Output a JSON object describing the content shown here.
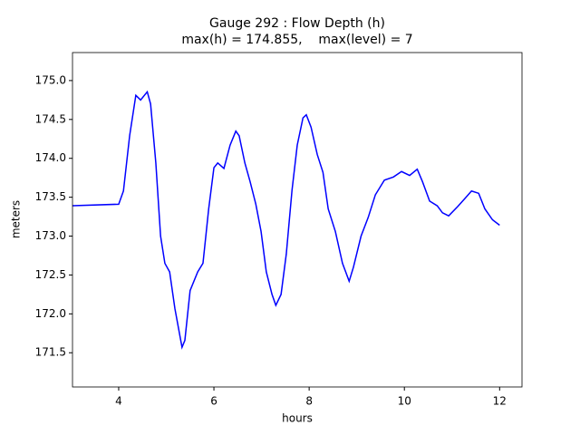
{
  "chart_data": {
    "type": "line",
    "title": "Gauge 292 : Flow Depth (h)",
    "subtitle": "max(h) = 174.855,    max(level) = 7",
    "x_label": "hours",
    "y_label": "meters",
    "x": [
      3.03,
      4.0,
      4.1,
      4.23,
      4.36,
      4.46,
      4.6,
      4.67,
      4.78,
      4.88,
      4.97,
      5.07,
      5.18,
      5.33,
      5.39,
      5.5,
      5.66,
      5.77,
      5.89,
      6.0,
      6.08,
      6.21,
      6.34,
      6.46,
      6.53,
      6.65,
      6.76,
      6.88,
      6.99,
      7.1,
      7.22,
      7.3,
      7.41,
      7.52,
      7.64,
      7.75,
      7.87,
      7.94,
      8.04,
      8.17,
      8.29,
      8.4,
      8.55,
      8.7,
      8.84,
      8.93,
      9.09,
      9.24,
      9.39,
      9.58,
      9.77,
      9.94,
      10.11,
      10.27,
      10.38,
      10.53,
      10.69,
      10.8,
      10.93,
      11.12,
      11.28,
      11.41,
      11.56,
      11.69,
      11.85,
      12.0
    ],
    "series": [
      {
        "color": "#0000ff",
        "values": [
          173.39,
          173.41,
          173.58,
          174.29,
          174.81,
          174.75,
          174.855,
          174.7,
          173.94,
          173.0,
          172.65,
          172.54,
          172.07,
          171.57,
          171.66,
          172.3,
          172.54,
          172.65,
          173.35,
          173.88,
          173.94,
          173.87,
          174.17,
          174.35,
          174.29,
          173.94,
          173.7,
          173.41,
          173.06,
          172.54,
          172.25,
          172.11,
          172.25,
          172.77,
          173.59,
          174.17,
          174.52,
          174.56,
          174.4,
          174.05,
          173.82,
          173.35,
          173.06,
          172.65,
          172.42,
          172.6,
          173.0,
          173.24,
          173.53,
          173.72,
          173.76,
          173.83,
          173.78,
          173.86,
          173.7,
          173.45,
          173.39,
          173.3,
          173.26,
          173.38,
          173.49,
          173.58,
          173.55,
          173.35,
          173.21,
          173.14
        ]
      }
    ],
    "xlim": [
      3.03,
      12.47
    ],
    "ylim": [
      171.06,
      175.36
    ],
    "xticks": [
      4,
      6,
      8,
      10,
      12
    ],
    "yticks": [
      171.5,
      {
        "value": 172,
        "label": "172.0"
      },
      172.5,
      {
        "value": 173,
        "label": "173.0"
      },
      173.5,
      {
        "value": 174,
        "label": "174.0"
      },
      174.5,
      {
        "value": 175,
        "label": "175.0"
      }
    ],
    "grid": false
  }
}
